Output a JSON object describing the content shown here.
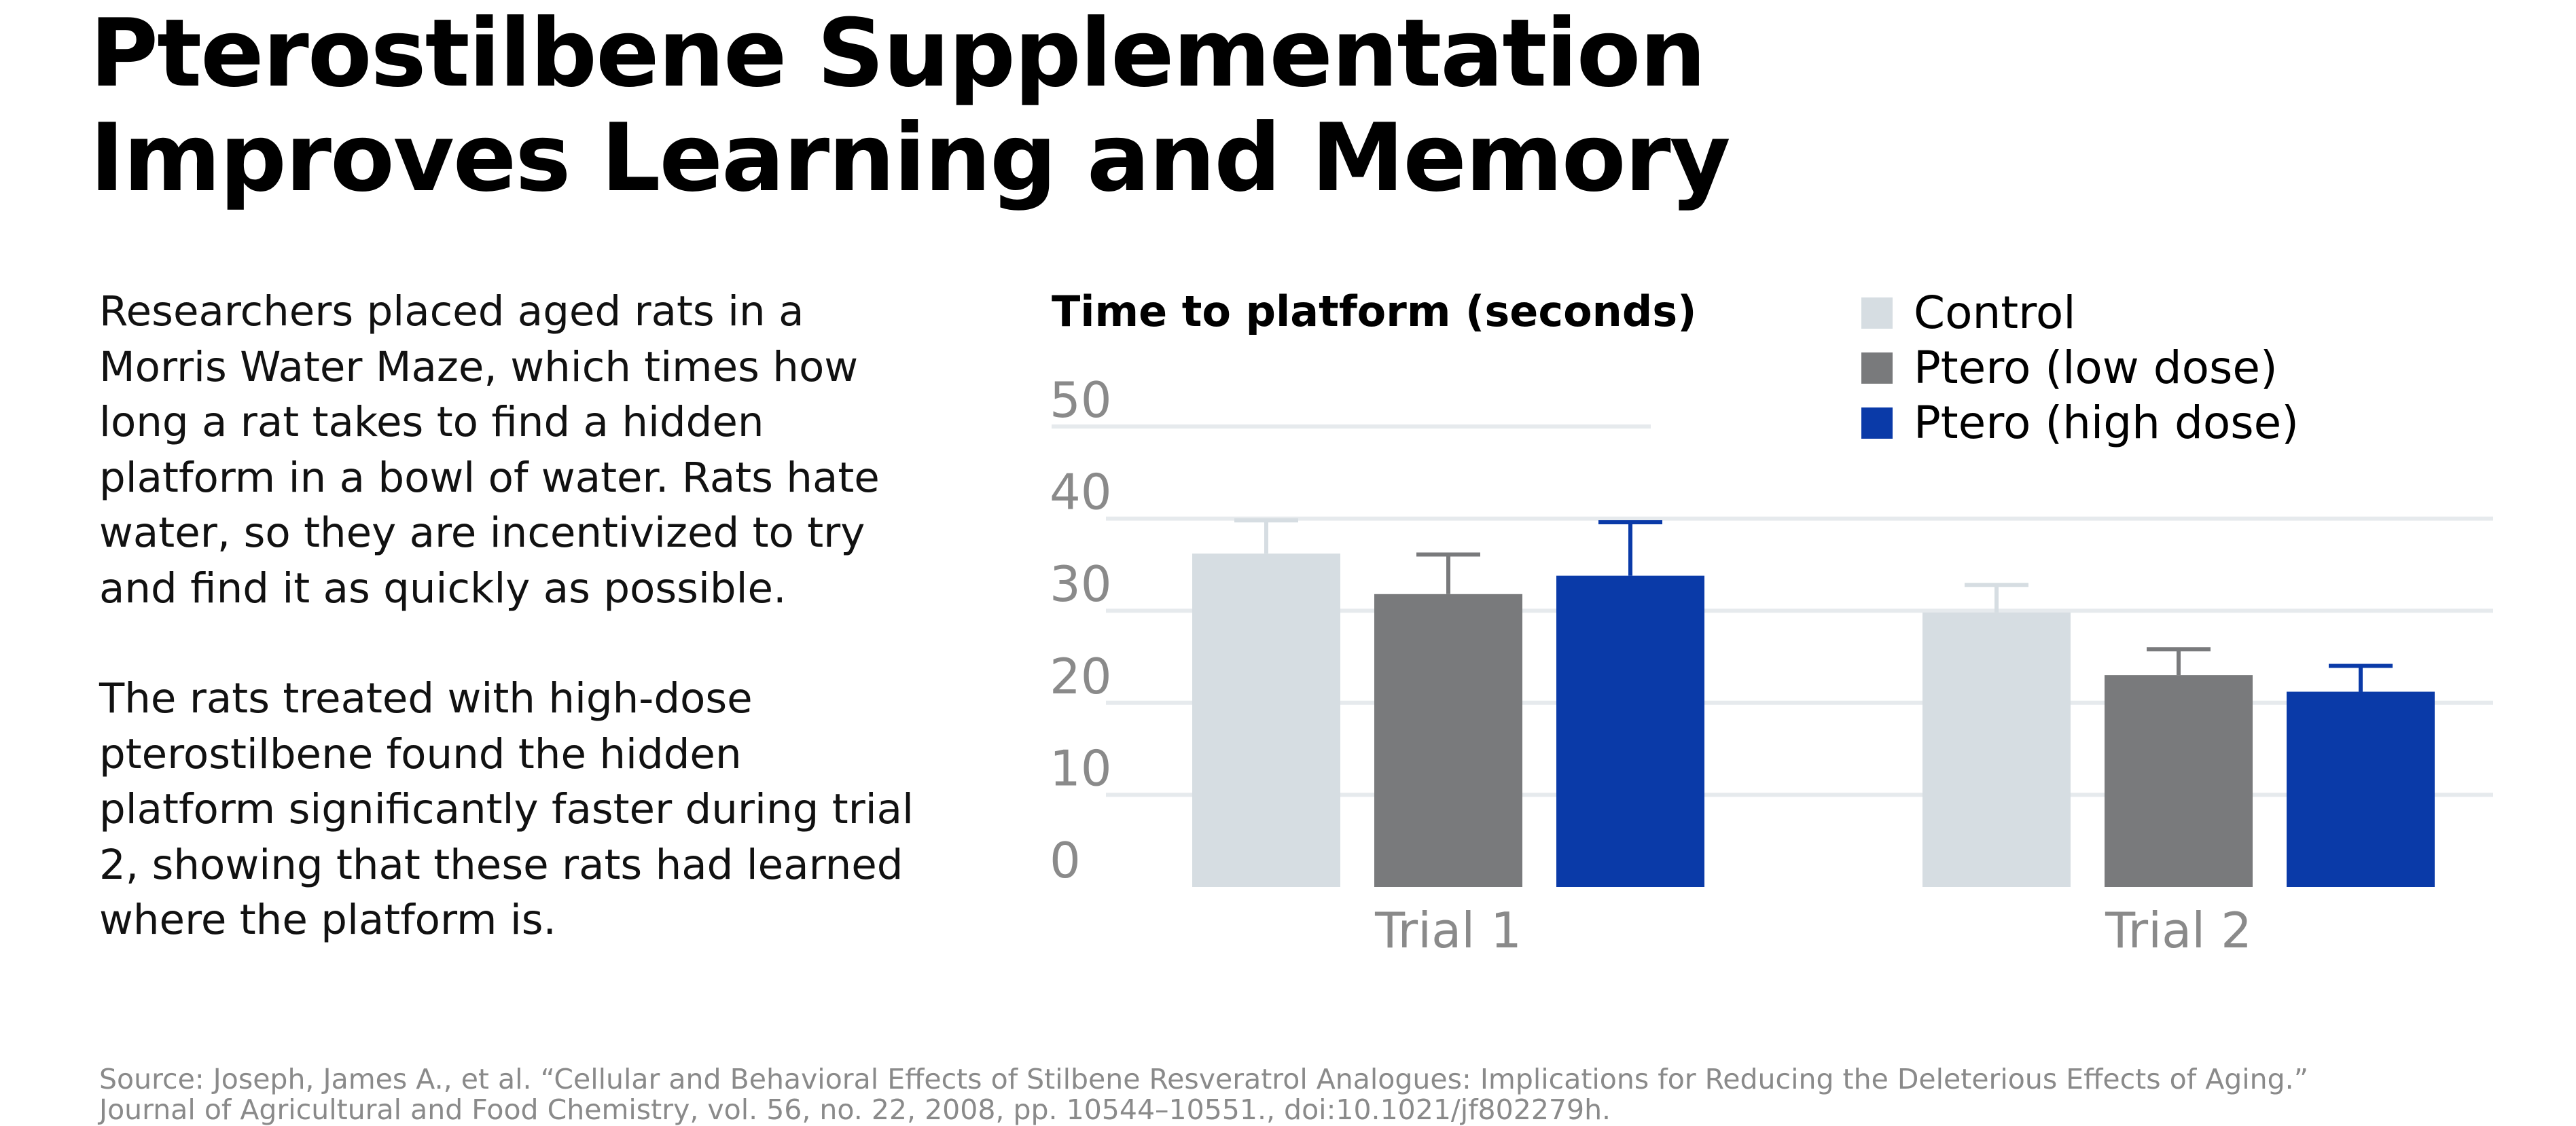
{
  "title": {
    "line1": "Pterostilbene Supplementation",
    "line2": "Improves Learning and Memory"
  },
  "description": {
    "paragraph1": "Researchers placed aged rats in a\nMorris Water Maze, which times how\nlong a rat takes to find a hidden\nplatform in a bowl of water. Rats hate\nwater, so they are incentivized to try\nand find it as quickly as possible.",
    "paragraph2": "The rats treated with high-dose\npterostilbene found the hidden\nplatform significantly faster during trial\n2, showing that these rats had learned\nwhere the platform is."
  },
  "source": {
    "line1": "Source: Joseph, James A., et al. “Cellular and Behavioral Effects of Stilbene Resveratrol Analogues: Implications for Reducing the Deleterious Effects of Aging.”",
    "line2": "Journal of Agricultural and Food Chemistry, vol. 56, no. 22, 2008, pp. 10544–10551., doi:10.1021/jf802279h."
  },
  "colors": {
    "control": "#d6dde2",
    "low_dose": "#797a7c",
    "high_dose": "#0a3aa8",
    "grid": "#e6eaed",
    "tick_label": "#8a8a8a"
  },
  "chart_data": {
    "type": "bar",
    "title": "Time to platform (seconds)",
    "xlabel": "",
    "ylabel": "",
    "categories": [
      "Trial 1",
      "Trial 2"
    ],
    "ylim": [
      0,
      50
    ],
    "yticks": [
      0,
      10,
      20,
      30,
      40,
      50
    ],
    "grid": true,
    "legend_position": "top-right",
    "error_bars": true,
    "series": [
      {
        "name": "Control",
        "values": [
          36.2,
          29.8
        ],
        "errors": [
          3.6,
          3.0
        ]
      },
      {
        "name": "Ptero (low dose)",
        "values": [
          31.8,
          23.0
        ],
        "errors": [
          4.3,
          2.8
        ]
      },
      {
        "name": "Ptero (high dose)",
        "values": [
          33.8,
          21.2
        ],
        "errors": [
          5.8,
          2.8
        ]
      }
    ]
  }
}
